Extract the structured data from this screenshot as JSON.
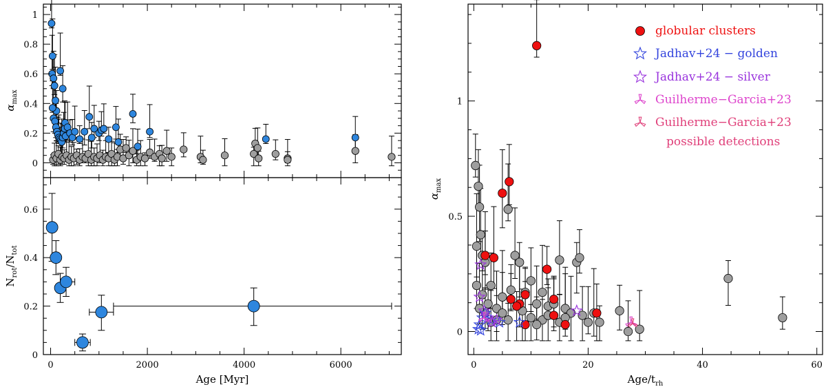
{
  "chart_data": [
    {
      "panel": "top-left",
      "type": "scatter",
      "xlabel": "",
      "ylabel": "α_max",
      "xlim": [
        -150,
        7250
      ],
      "ylim": [
        -0.1,
        1.07
      ],
      "yticks": [
        0,
        0.2,
        0.4,
        0.6,
        0.8,
        1
      ],
      "ytick_labels": [
        "0",
        "0.2",
        "0.4",
        "0.6",
        "0.8",
        "1"
      ],
      "series": [
        {
          "color": "#9e9e9e",
          "points": [
            [
              50,
              0.02
            ],
            [
              80,
              0.05
            ],
            [
              120,
              0.03
            ],
            [
              160,
              0.06
            ],
            [
              200,
              0.02
            ],
            [
              240,
              0.04
            ],
            [
              280,
              0.03
            ],
            [
              330,
              0.05
            ],
            [
              380,
              0.02
            ],
            [
              430,
              0.04
            ],
            [
              480,
              0.03
            ],
            [
              540,
              0.05
            ],
            [
              600,
              0.02
            ],
            [
              660,
              0.04
            ],
            [
              720,
              0.03
            ],
            [
              780,
              0.06
            ],
            [
              840,
              0.02
            ],
            [
              900,
              0.04
            ],
            [
              960,
              0.03
            ],
            [
              1020,
              0.05
            ],
            [
              1080,
              0.02
            ],
            [
              1140,
              0.04
            ],
            [
              1200,
              0.03
            ],
            [
              1260,
              0.06
            ],
            [
              1320,
              0.02
            ],
            [
              1380,
              0.04
            ],
            [
              1440,
              0.09
            ],
            [
              1500,
              0.03
            ],
            [
              1560,
              0.1
            ],
            [
              1620,
              0.05
            ],
            [
              1700,
              0.08
            ],
            [
              1780,
              0.02
            ],
            [
              1860,
              0.04
            ],
            [
              1950,
              0.03
            ],
            [
              2050,
              0.07
            ],
            [
              2150,
              0.04
            ],
            [
              2250,
              0.06
            ],
            [
              2300,
              0.03
            ],
            [
              2400,
              0.08
            ],
            [
              2500,
              0.04
            ],
            [
              2750,
              0.09
            ],
            [
              3100,
              0.04
            ],
            [
              3150,
              0.02
            ],
            [
              3600,
              0.05
            ],
            [
              4200,
              0.06
            ],
            [
              4230,
              0.13
            ],
            [
              4280,
              0.1
            ],
            [
              4300,
              0.03
            ],
            [
              4650,
              0.06
            ],
            [
              4900,
              0.03
            ],
            [
              4900,
              0.02
            ],
            [
              6300,
              0.08
            ],
            [
              7050,
              0.04
            ]
          ]
        },
        {
          "color": "#2e86de",
          "points": [
            [
              20,
              0.94
            ],
            [
              40,
              0.72
            ],
            [
              30,
              0.6
            ],
            [
              60,
              0.57
            ],
            [
              80,
              0.52
            ],
            [
              100,
              0.42
            ],
            [
              120,
              0.35
            ],
            [
              40,
              0.37
            ],
            [
              60,
              0.3
            ],
            [
              90,
              0.28
            ],
            [
              110,
              0.24
            ],
            [
              130,
              0.21
            ],
            [
              150,
              0.19
            ],
            [
              170,
              0.17
            ],
            [
              190,
              0.16
            ],
            [
              210,
              0.15
            ],
            [
              230,
              0.14
            ],
            [
              250,
              0.17
            ],
            [
              270,
              0.2
            ],
            [
              290,
              0.23
            ],
            [
              310,
              0.18
            ],
            [
              200,
              0.62
            ],
            [
              250,
              0.5
            ],
            [
              300,
              0.27
            ],
            [
              350,
              0.24
            ],
            [
              400,
              0.2
            ],
            [
              450,
              0.17
            ],
            [
              500,
              0.21
            ],
            [
              600,
              0.16
            ],
            [
              700,
              0.21
            ],
            [
              800,
              0.31
            ],
            [
              850,
              0.17
            ],
            [
              900,
              0.23
            ],
            [
              1000,
              0.2
            ],
            [
              1050,
              0.22
            ],
            [
              1100,
              0.23
            ],
            [
              1200,
              0.16
            ],
            [
              1350,
              0.24
            ],
            [
              1400,
              0.14
            ],
            [
              1700,
              0.33
            ],
            [
              1800,
              0.11
            ],
            [
              2050,
              0.21
            ],
            [
              4450,
              0.16
            ],
            [
              6300,
              0.17
            ]
          ]
        }
      ]
    },
    {
      "panel": "bottom-left",
      "type": "scatter",
      "xlabel": "Age [Myr]",
      "ylabel": "N_rot/N_tot",
      "xlim": [
        -150,
        7250
      ],
      "ylim": [
        0,
        0.73
      ],
      "xticks": [
        0,
        2000,
        4000,
        6000
      ],
      "xtick_labels": [
        "0",
        "2000",
        "4000",
        "6000"
      ],
      "yticks": [
        0,
        0.2,
        0.4,
        0.6
      ],
      "ytick_labels": [
        "0",
        "0.2",
        "0.4",
        "0.6"
      ],
      "color": "#2e86de",
      "points": [
        {
          "x": 30,
          "y": 0.525,
          "yerr": [
            0.385,
            0.665
          ],
          "xerr": [
            0,
            60
          ]
        },
        {
          "x": 110,
          "y": 0.4,
          "yerr": [
            0.33,
            0.47
          ],
          "xerr": [
            50,
            170
          ]
        },
        {
          "x": 200,
          "y": 0.275,
          "yerr": [
            0.215,
            0.335
          ],
          "xerr": [
            150,
            250
          ]
        },
        {
          "x": 320,
          "y": 0.3,
          "yerr": [
            0.24,
            0.36
          ],
          "xerr": [
            200,
            500
          ]
        },
        {
          "x": 660,
          "y": 0.05,
          "yerr": [
            0.015,
            0.085
          ],
          "xerr": [
            500,
            820
          ]
        },
        {
          "x": 1050,
          "y": 0.175,
          "yerr": [
            0.1,
            0.245
          ],
          "xerr": [
            800,
            1300
          ]
        },
        {
          "x": 4200,
          "y": 0.2,
          "yerr": [
            0.12,
            0.275
          ],
          "xerr": [
            1300,
            7050
          ]
        }
      ]
    },
    {
      "panel": "right",
      "type": "scatter",
      "xlabel": "Age/t_rh",
      "ylabel": "α_max",
      "xlim": [
        -1,
        61
      ],
      "ylim": [
        -0.1,
        1.42
      ],
      "xticks": [
        0,
        20,
        40,
        60
      ],
      "xtick_labels": [
        "0",
        "20",
        "40",
        "60"
      ],
      "yticks": [
        0,
        0.5,
        1
      ],
      "ytick_labels": [
        "0",
        "0.5",
        "1"
      ],
      "legend": {
        "placement": "top-right",
        "entries": [
          {
            "label": "globular clusters",
            "color": "#ee1111",
            "marker": "circle"
          },
          {
            "label": "Jadhav+24 − golden",
            "color": "#3344dd",
            "marker": "star"
          },
          {
            "label": "Jadhav+24 − silver",
            "color": "#9933dd",
            "marker": "star"
          },
          {
            "label": "Guilherme−Garcia+23",
            "color": "#dd44cc",
            "marker": "tristar"
          },
          {
            "label": "Guilherme−Garcia+23",
            "color": "#e0407a",
            "marker": "tristar"
          },
          {
            "label": "possible detections",
            "color": "#e0407a",
            "marker": "none"
          }
        ]
      },
      "series": [
        {
          "name": "",
          "color": "#9e9e9e",
          "points": [
            [
              0.3,
              0.72
            ],
            [
              0.8,
              0.63
            ],
            [
              1.0,
              0.54
            ],
            [
              1.2,
              0.42
            ],
            [
              0.5,
              0.37
            ],
            [
              1.5,
              0.33
            ],
            [
              2,
              0.3
            ],
            [
              6,
              0.53
            ],
            [
              7.2,
              0.33
            ],
            [
              8,
              0.3
            ],
            [
              9,
              0.17
            ],
            [
              10,
              0.22
            ],
            [
              11,
              0.12
            ],
            [
              12,
              0.17
            ],
            [
              13,
              0.11
            ],
            [
              14,
              0.12
            ],
            [
              15,
              0.31
            ],
            [
              16,
              0.1
            ],
            [
              18,
              0.3
            ],
            [
              18.5,
              0.32
            ],
            [
              19,
              0.07
            ],
            [
              20,
              0.04
            ],
            [
              21,
              0.08
            ],
            [
              22,
              0.04
            ],
            [
              25.5,
              0.09
            ],
            [
              27,
              0.0
            ],
            [
              29,
              0.01
            ],
            [
              44.5,
              0.23
            ],
            [
              54,
              0.06
            ],
            [
              3,
              0.2
            ],
            [
              4,
              0.1
            ],
            [
              5,
              0.15
            ],
            [
              6,
              0.05
            ],
            [
              2,
              0.08
            ],
            [
              3,
              0.04
            ],
            [
              5,
              0.08
            ],
            [
              10,
              0.06
            ],
            [
              12,
              0.05
            ],
            [
              15,
              0.04
            ],
            [
              17,
              0.08
            ],
            [
              1,
              0.1
            ],
            [
              2.5,
              0.12
            ],
            [
              4,
              0.05
            ],
            [
              0.5,
              0.2
            ],
            [
              1.5,
              0.16
            ],
            [
              6.5,
              0.18
            ],
            [
              8.5,
              0.09
            ],
            [
              11,
              0.03
            ],
            [
              13,
              0.07
            ],
            [
              16,
              0.06
            ]
          ]
        },
        {
          "name": "globular clusters",
          "color": "#ee1111",
          "points": [
            [
              11,
              1.24
            ],
            [
              6.2,
              0.65
            ],
            [
              5,
              0.6
            ],
            [
              2,
              0.33
            ],
            [
              3.5,
              0.32
            ],
            [
              12.8,
              0.27
            ],
            [
              9,
              0.16
            ],
            [
              6.5,
              0.14
            ],
            [
              8,
              0.12
            ],
            [
              7.5,
              0.11
            ],
            [
              14,
              0.14
            ],
            [
              21.5,
              0.08
            ],
            [
              14,
              0.07
            ],
            [
              9,
              0.03
            ],
            [
              16,
              0.03
            ]
          ]
        },
        {
          "name": "Jadhav+24 − golden",
          "color": "#3344dd",
          "points": [
            [
              1,
              0.03
            ],
            [
              1.5,
              0.06
            ],
            [
              2,
              0.08
            ],
            [
              3,
              0.05
            ],
            [
              4.5,
              0.04
            ],
            [
              8,
              0.04
            ],
            [
              0.8,
              0.01
            ],
            [
              1.2,
              0.005
            ]
          ]
        },
        {
          "name": "Jadhav+24 − silver",
          "color": "#9933dd",
          "points": [
            [
              1.2,
              0.29
            ],
            [
              1.0,
              0.15
            ],
            [
              1.8,
              0.09
            ],
            [
              2.5,
              0.06
            ],
            [
              3.2,
              0.04
            ],
            [
              18,
              0.09
            ],
            [
              4,
              0.05
            ]
          ]
        },
        {
          "name": "Guilherme−Garcia+23",
          "color": "#dd44cc",
          "points": [
            [
              27.5,
              0.04
            ],
            [
              1.8,
              0.06
            ]
          ]
        },
        {
          "name": "Guilherme−Garcia+23 possible detections",
          "color": "#e0407a",
          "points": [
            [
              27.8,
              0.035
            ]
          ]
        }
      ]
    }
  ]
}
